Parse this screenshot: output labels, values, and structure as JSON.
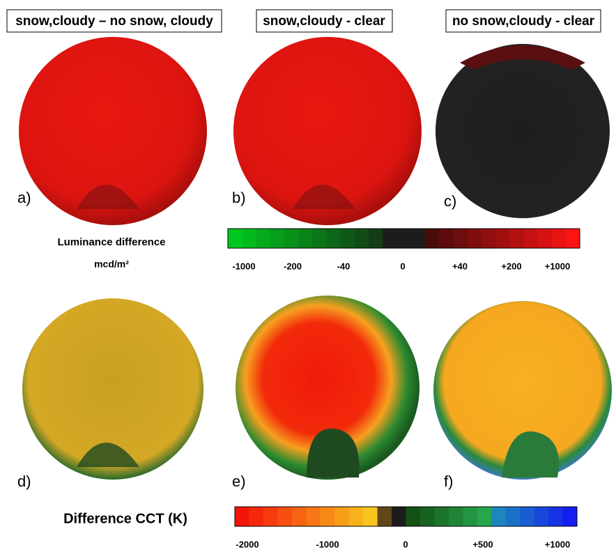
{
  "panels": [
    {
      "title": "snow,cloudy – no snow, cloudy",
      "label": "a)"
    },
    {
      "title": "snow,cloudy - clear",
      "label": "b)"
    },
    {
      "title": "no snow,cloudy - clear",
      "label": "c)"
    },
    {
      "label": "d)"
    },
    {
      "label": "e)"
    },
    {
      "label": "f)"
    }
  ],
  "luminance_scale": {
    "title": "Luminance difference",
    "unit": "mcd/m²",
    "ticks": [
      "-1000",
      "-200",
      "-40",
      "0",
      "+40",
      "+200",
      "+1000"
    ]
  },
  "cct_scale": {
    "title": "Difference CCT (K)",
    "ticks": [
      "-2000",
      "-1000",
      "0",
      "+500",
      "+1000"
    ]
  }
}
